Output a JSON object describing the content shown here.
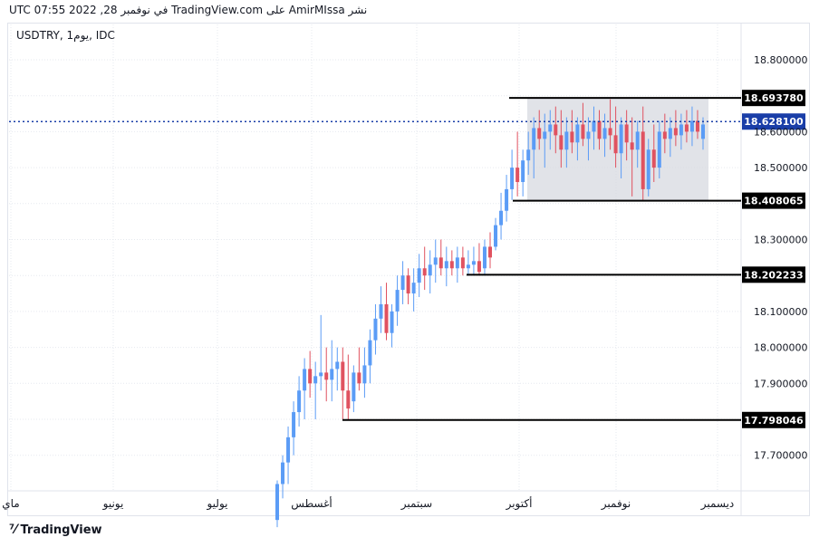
{
  "header": {
    "published_line": "نشر AmirMIssa على TradingView.com في نوفمبر 28, 2022 07:55 UTC",
    "symbol_line": "USDTRY, 1يوم, IDC"
  },
  "footer": {
    "logo_text": "TradingView",
    "logo_icon": "tradingview-logo-icon"
  },
  "colors": {
    "up": "#5b9cf6",
    "down": "#e05260",
    "grid": "#e6e9ef",
    "line": "#000000",
    "box": "#d7d9e0",
    "current_price": "#1a3ea8"
  },
  "chart_data": {
    "type": "candlestick",
    "ylim": [
      17.6,
      18.85
    ],
    "y_ticks": [
      "18.800000",
      "18.600000",
      "18.500000",
      "18.300000",
      "18.100000",
      "18.000000",
      "17.900000",
      "17.700000"
    ],
    "x_ticks": [
      "ماي",
      "يونيو",
      "يوليو",
      "أغسطس",
      "سبتمبر",
      "أكتوبر",
      "نوفمبر",
      "ديسمبر"
    ],
    "levels": [
      {
        "label": "18.693780",
        "value": 18.69378
      },
      {
        "label": "18.408065",
        "value": 18.408065
      },
      {
        "label": "18.202233",
        "value": 18.202233
      },
      {
        "label": "17.798046",
        "value": 17.798046
      }
    ],
    "current_price": {
      "label": "18.628100",
      "value": 18.6281
    },
    "range_box": {
      "from": 18.408065,
      "to": 18.69378
    },
    "candles": [
      [
        17.52,
        17.63,
        17.5,
        17.62
      ],
      [
        17.62,
        17.7,
        17.58,
        17.68
      ],
      [
        17.68,
        17.78,
        17.62,
        17.75
      ],
      [
        17.75,
        17.85,
        17.7,
        17.82
      ],
      [
        17.82,
        17.92,
        17.78,
        17.88
      ],
      [
        17.88,
        17.97,
        17.8,
        17.94
      ],
      [
        17.94,
        17.99,
        17.86,
        17.9
      ],
      [
        17.9,
        17.96,
        17.8,
        17.92
      ],
      [
        17.92,
        18.09,
        17.88,
        17.93
      ],
      [
        17.93,
        18.0,
        17.85,
        17.91
      ],
      [
        17.91,
        18.02,
        17.85,
        17.94
      ],
      [
        17.94,
        18.0,
        17.88,
        17.96
      ],
      [
        17.96,
        18.0,
        17.8,
        17.88
      ],
      [
        17.88,
        17.98,
        17.8,
        17.83
      ],
      [
        17.85,
        17.95,
        17.82,
        17.93
      ],
      [
        17.93,
        18.0,
        17.88,
        17.9
      ],
      [
        17.9,
        18.0,
        17.86,
        17.95
      ],
      [
        17.95,
        18.05,
        17.9,
        18.02
      ],
      [
        18.02,
        18.12,
        17.98,
        18.08
      ],
      [
        18.08,
        18.17,
        18.04,
        18.12
      ],
      [
        18.12,
        18.18,
        18.02,
        18.04
      ],
      [
        18.04,
        18.12,
        18.0,
        18.1
      ],
      [
        18.1,
        18.2,
        18.06,
        18.16
      ],
      [
        18.16,
        18.24,
        18.12,
        18.2
      ],
      [
        18.2,
        18.22,
        18.12,
        18.15
      ],
      [
        18.15,
        18.22,
        18.1,
        18.18
      ],
      [
        18.18,
        18.26,
        18.14,
        18.22
      ],
      [
        18.22,
        18.28,
        18.16,
        18.2
      ],
      [
        18.2,
        18.27,
        18.15,
        18.23
      ],
      [
        18.23,
        18.3,
        18.18,
        18.25
      ],
      [
        18.25,
        18.3,
        18.2,
        18.22
      ],
      [
        18.22,
        18.28,
        18.17,
        18.24
      ],
      [
        18.24,
        18.27,
        18.2,
        18.22
      ],
      [
        18.22,
        18.28,
        18.18,
        18.25
      ],
      [
        18.25,
        18.28,
        18.2,
        18.22
      ],
      [
        18.22,
        18.27,
        18.2,
        18.23
      ],
      [
        18.23,
        18.28,
        18.2,
        18.24
      ],
      [
        18.24,
        18.29,
        18.2,
        18.21
      ],
      [
        18.22,
        18.3,
        18.2,
        18.28
      ],
      [
        18.28,
        18.32,
        18.22,
        18.25
      ],
      [
        18.28,
        18.36,
        18.27,
        18.34
      ],
      [
        18.34,
        18.43,
        18.3,
        18.38
      ],
      [
        18.38,
        18.48,
        18.35,
        18.44
      ],
      [
        18.44,
        18.55,
        18.41,
        18.5
      ],
      [
        18.5,
        18.6,
        18.42,
        18.46
      ],
      [
        18.46,
        18.55,
        18.42,
        18.52
      ],
      [
        18.52,
        18.6,
        18.48,
        18.55
      ],
      [
        18.55,
        18.64,
        18.47,
        18.61
      ],
      [
        18.61,
        18.66,
        18.55,
        18.58
      ],
      [
        18.58,
        18.65,
        18.5,
        18.6
      ],
      [
        18.6,
        18.66,
        18.55,
        18.62
      ],
      [
        18.62,
        18.67,
        18.54,
        18.59
      ],
      [
        18.59,
        18.66,
        18.5,
        18.55
      ],
      [
        18.55,
        18.64,
        18.5,
        18.6
      ],
      [
        18.6,
        18.66,
        18.54,
        18.57
      ],
      [
        18.57,
        18.64,
        18.52,
        18.62
      ],
      [
        18.62,
        18.68,
        18.56,
        18.58
      ],
      [
        18.58,
        18.64,
        18.52,
        18.6
      ],
      [
        18.6,
        18.67,
        18.55,
        18.63
      ],
      [
        18.63,
        18.66,
        18.55,
        18.58
      ],
      [
        18.58,
        18.65,
        18.53,
        18.61
      ],
      [
        18.61,
        18.69,
        18.55,
        18.59
      ],
      [
        18.59,
        18.67,
        18.5,
        18.54
      ],
      [
        18.54,
        18.64,
        18.47,
        18.62
      ],
      [
        18.62,
        18.66,
        18.52,
        18.57
      ],
      [
        18.57,
        18.64,
        18.42,
        18.55
      ],
      [
        18.55,
        18.63,
        18.5,
        18.6
      ],
      [
        18.6,
        18.67,
        18.41,
        18.44
      ],
      [
        18.44,
        18.58,
        18.42,
        18.55
      ],
      [
        18.55,
        18.62,
        18.46,
        18.5
      ],
      [
        18.5,
        18.63,
        18.47,
        18.6
      ],
      [
        18.6,
        18.65,
        18.54,
        18.58
      ],
      [
        18.58,
        18.64,
        18.53,
        18.61
      ],
      [
        18.61,
        18.66,
        18.56,
        18.59
      ],
      [
        18.59,
        18.65,
        18.55,
        18.62
      ],
      [
        18.62,
        18.66,
        18.57,
        18.6
      ],
      [
        18.6,
        18.67,
        18.56,
        18.63
      ],
      [
        18.63,
        18.66,
        18.58,
        18.6
      ],
      [
        18.58,
        18.64,
        18.55,
        18.62
      ]
    ]
  }
}
